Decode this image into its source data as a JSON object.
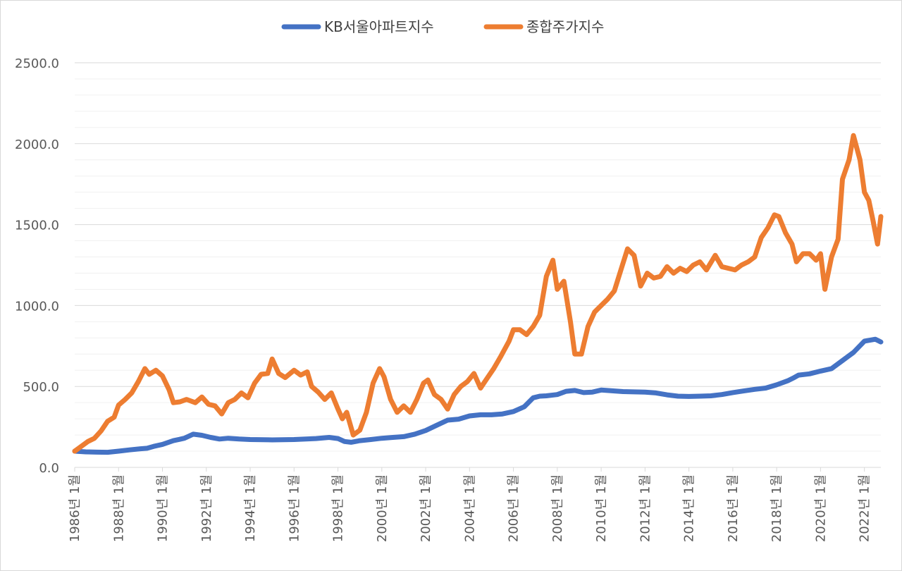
{
  "chart_data": {
    "type": "line",
    "title": "",
    "xlabel": "",
    "ylabel": "",
    "ylim": [
      0,
      2500
    ],
    "y_ticks": [
      0,
      500,
      1000,
      1500,
      2000,
      2500
    ],
    "y_tick_labels": [
      "0.0",
      "500.0",
      "1000.0",
      "1500.0",
      "2000.0",
      "2500.0"
    ],
    "y_minor_step": 100,
    "x_range": [
      1986.0,
      2022.75
    ],
    "x_tick_years": [
      1986,
      1988,
      1990,
      1992,
      1994,
      1996,
      1998,
      2000,
      2002,
      2004,
      2006,
      2008,
      2010,
      2012,
      2014,
      2016,
      2018,
      2020,
      2022
    ],
    "x_tick_labels": [
      "1986년 1월",
      "1988년 1월",
      "1990년 1월",
      "1992년 1월",
      "1994년 1월",
      "1996년 1월",
      "1998년 1월",
      "2000년 1월",
      "2002년 1월",
      "2004년 1월",
      "2006년 1월",
      "2008년 1월",
      "2010년 1월",
      "2012년 1월",
      "2014년 1월",
      "2016년 1월",
      "2018년 1월",
      "2020년 1월",
      "2022년 1월"
    ],
    "grid": true,
    "legend_position": "top-center",
    "series": [
      {
        "name": "KB서울아파트지수",
        "color": "#4472c4",
        "points": [
          [
            1986.0,
            100
          ],
          [
            1986.5,
            96
          ],
          [
            1987.0,
            94
          ],
          [
            1987.5,
            93
          ],
          [
            1988.0,
            100
          ],
          [
            1988.5,
            108
          ],
          [
            1989.0,
            115
          ],
          [
            1989.3,
            118
          ],
          [
            1989.6,
            130
          ],
          [
            1990.0,
            142
          ],
          [
            1990.5,
            165
          ],
          [
            1991.0,
            180
          ],
          [
            1991.4,
            205
          ],
          [
            1991.8,
            198
          ],
          [
            1992.2,
            185
          ],
          [
            1992.6,
            175
          ],
          [
            1993.0,
            180
          ],
          [
            1993.5,
            175
          ],
          [
            1994.0,
            172
          ],
          [
            1995.0,
            170
          ],
          [
            1996.0,
            172
          ],
          [
            1997.0,
            178
          ],
          [
            1997.6,
            185
          ],
          [
            1998.0,
            178
          ],
          [
            1998.3,
            160
          ],
          [
            1998.6,
            155
          ],
          [
            1999.0,
            165
          ],
          [
            1999.5,
            172
          ],
          [
            2000.0,
            180
          ],
          [
            2000.5,
            185
          ],
          [
            2001.0,
            190
          ],
          [
            2001.5,
            205
          ],
          [
            2002.0,
            228
          ],
          [
            2002.5,
            260
          ],
          [
            2003.0,
            292
          ],
          [
            2003.5,
            298
          ],
          [
            2004.0,
            318
          ],
          [
            2004.5,
            325
          ],
          [
            2005.0,
            325
          ],
          [
            2005.5,
            330
          ],
          [
            2006.0,
            345
          ],
          [
            2006.5,
            375
          ],
          [
            2006.9,
            430
          ],
          [
            2007.2,
            440
          ],
          [
            2007.5,
            442
          ],
          [
            2008.0,
            450
          ],
          [
            2008.4,
            470
          ],
          [
            2008.8,
            475
          ],
          [
            2009.2,
            462
          ],
          [
            2009.6,
            465
          ],
          [
            2010.0,
            478
          ],
          [
            2011.0,
            468
          ],
          [
            2012.0,
            465
          ],
          [
            2012.5,
            460
          ],
          [
            2013.0,
            448
          ],
          [
            2013.5,
            440
          ],
          [
            2014.0,
            438
          ],
          [
            2014.5,
            440
          ],
          [
            2015.0,
            442
          ],
          [
            2015.5,
            450
          ],
          [
            2016.0,
            462
          ],
          [
            2016.5,
            472
          ],
          [
            2017.0,
            482
          ],
          [
            2017.5,
            490
          ],
          [
            2018.0,
            510
          ],
          [
            2018.5,
            535
          ],
          [
            2018.8,
            555
          ],
          [
            2019.0,
            570
          ],
          [
            2019.5,
            578
          ],
          [
            2020.0,
            595
          ],
          [
            2020.5,
            610
          ],
          [
            2021.0,
            660
          ],
          [
            2021.5,
            710
          ],
          [
            2022.0,
            780
          ],
          [
            2022.5,
            792
          ],
          [
            2022.75,
            775
          ]
        ]
      },
      {
        "name": "종합주가지수",
        "color": "#ed7d31",
        "points": [
          [
            1986.0,
            100
          ],
          [
            1986.3,
            130
          ],
          [
            1986.6,
            160
          ],
          [
            1986.9,
            180
          ],
          [
            1987.2,
            225
          ],
          [
            1987.5,
            285
          ],
          [
            1987.8,
            310
          ],
          [
            1988.0,
            385
          ],
          [
            1988.3,
            420
          ],
          [
            1988.6,
            460
          ],
          [
            1988.9,
            530
          ],
          [
            1989.2,
            610
          ],
          [
            1989.4,
            575
          ],
          [
            1989.7,
            600
          ],
          [
            1990.0,
            565
          ],
          [
            1990.3,
            480
          ],
          [
            1990.5,
            400
          ],
          [
            1990.8,
            405
          ],
          [
            1991.1,
            420
          ],
          [
            1991.5,
            400
          ],
          [
            1991.8,
            435
          ],
          [
            1992.1,
            390
          ],
          [
            1992.4,
            380
          ],
          [
            1992.7,
            330
          ],
          [
            1993.0,
            400
          ],
          [
            1993.3,
            420
          ],
          [
            1993.6,
            460
          ],
          [
            1993.9,
            430
          ],
          [
            1994.2,
            520
          ],
          [
            1994.5,
            575
          ],
          [
            1994.8,
            580
          ],
          [
            1995.0,
            670
          ],
          [
            1995.3,
            580
          ],
          [
            1995.6,
            555
          ],
          [
            1996.0,
            600
          ],
          [
            1996.3,
            570
          ],
          [
            1996.6,
            590
          ],
          [
            1996.8,
            500
          ],
          [
            1997.1,
            465
          ],
          [
            1997.4,
            420
          ],
          [
            1997.7,
            460
          ],
          [
            1998.0,
            360
          ],
          [
            1998.2,
            300
          ],
          [
            1998.4,
            340
          ],
          [
            1998.7,
            200
          ],
          [
            1999.0,
            230
          ],
          [
            1999.3,
            340
          ],
          [
            1999.6,
            520
          ],
          [
            1999.9,
            610
          ],
          [
            2000.1,
            560
          ],
          [
            2000.4,
            420
          ],
          [
            2000.7,
            340
          ],
          [
            2001.0,
            380
          ],
          [
            2001.3,
            340
          ],
          [
            2001.6,
            420
          ],
          [
            2001.9,
            520
          ],
          [
            2002.1,
            540
          ],
          [
            2002.4,
            450
          ],
          [
            2002.7,
            420
          ],
          [
            2003.0,
            360
          ],
          [
            2003.3,
            450
          ],
          [
            2003.6,
            500
          ],
          [
            2003.9,
            530
          ],
          [
            2004.2,
            580
          ],
          [
            2004.5,
            490
          ],
          [
            2004.8,
            550
          ],
          [
            2005.1,
            610
          ],
          [
            2005.4,
            680
          ],
          [
            2005.8,
            780
          ],
          [
            2006.0,
            850
          ],
          [
            2006.3,
            850
          ],
          [
            2006.6,
            820
          ],
          [
            2006.9,
            870
          ],
          [
            2007.2,
            940
          ],
          [
            2007.5,
            1180
          ],
          [
            2007.8,
            1280
          ],
          [
            2008.0,
            1100
          ],
          [
            2008.3,
            1150
          ],
          [
            2008.6,
            900
          ],
          [
            2008.8,
            700
          ],
          [
            2009.1,
            700
          ],
          [
            2009.4,
            870
          ],
          [
            2009.7,
            960
          ],
          [
            2010.0,
            1000
          ],
          [
            2010.3,
            1040
          ],
          [
            2010.6,
            1090
          ],
          [
            2010.9,
            1220
          ],
          [
            2011.2,
            1350
          ],
          [
            2011.5,
            1310
          ],
          [
            2011.8,
            1120
          ],
          [
            2012.1,
            1200
          ],
          [
            2012.4,
            1170
          ],
          [
            2012.7,
            1180
          ],
          [
            2013.0,
            1240
          ],
          [
            2013.3,
            1200
          ],
          [
            2013.6,
            1230
          ],
          [
            2013.9,
            1210
          ],
          [
            2014.2,
            1250
          ],
          [
            2014.5,
            1270
          ],
          [
            2014.8,
            1220
          ],
          [
            2015.2,
            1310
          ],
          [
            2015.5,
            1240
          ],
          [
            2015.8,
            1230
          ],
          [
            2016.1,
            1220
          ],
          [
            2016.4,
            1250
          ],
          [
            2016.7,
            1270
          ],
          [
            2017.0,
            1300
          ],
          [
            2017.3,
            1420
          ],
          [
            2017.6,
            1480
          ],
          [
            2017.9,
            1560
          ],
          [
            2018.1,
            1550
          ],
          [
            2018.4,
            1450
          ],
          [
            2018.7,
            1380
          ],
          [
            2018.9,
            1270
          ],
          [
            2019.2,
            1320
          ],
          [
            2019.5,
            1320
          ],
          [
            2019.8,
            1280
          ],
          [
            2020.0,
            1320
          ],
          [
            2020.2,
            1100
          ],
          [
            2020.5,
            1300
          ],
          [
            2020.8,
            1410
          ],
          [
            2021.0,
            1780
          ],
          [
            2021.3,
            1900
          ],
          [
            2021.5,
            2050
          ],
          [
            2021.8,
            1900
          ],
          [
            2022.0,
            1700
          ],
          [
            2022.2,
            1650
          ],
          [
            2022.4,
            1520
          ],
          [
            2022.6,
            1380
          ],
          [
            2022.75,
            1550
          ]
        ]
      }
    ]
  }
}
